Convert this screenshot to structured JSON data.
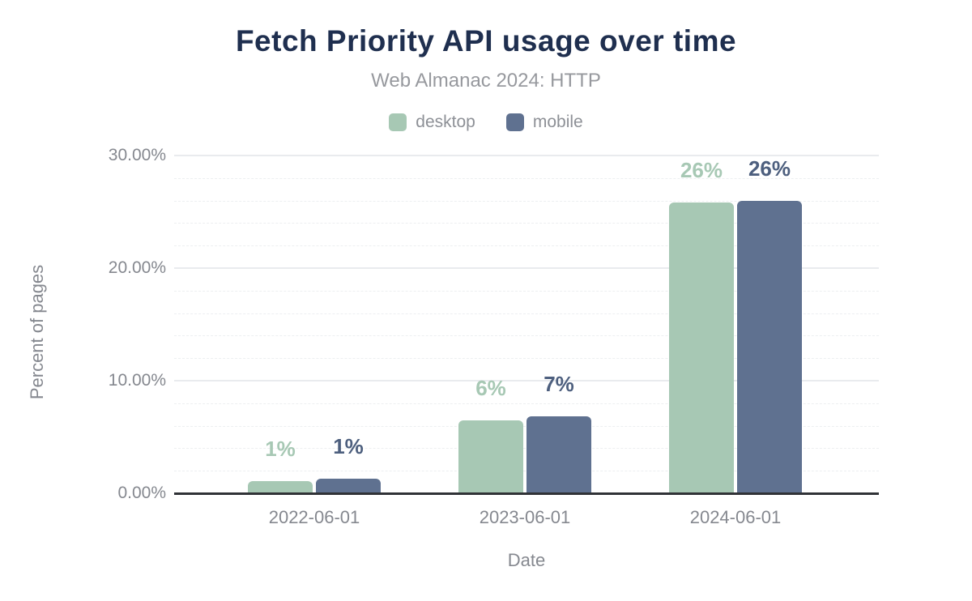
{
  "chart": {
    "title": "Fetch Priority API usage over time",
    "subtitle": "Web Almanac 2024: HTTP",
    "x_axis_title": "Date",
    "y_axis_title": "Percent of pages"
  },
  "chart_data": {
    "type": "bar",
    "title": "Fetch Priority API usage over time",
    "subtitle": "Web Almanac 2024: HTTP",
    "xlabel": "Date",
    "ylabel": "Percent of pages",
    "categories": [
      "2022-06-01",
      "2023-06-01",
      "2024-06-01"
    ],
    "series": [
      {
        "name": "desktop",
        "color": "#a7c8b4",
        "label_color": "#a7c8b4",
        "values": [
          1.1,
          6.5,
          25.8
        ],
        "labels": [
          "1%",
          "6%",
          "26%"
        ]
      },
      {
        "name": "mobile",
        "color": "#5f7190",
        "label_color": "#4d5f7e",
        "values": [
          1.3,
          6.8,
          26.0
        ],
        "labels": [
          "1%",
          "7%",
          "26%"
        ]
      }
    ],
    "y_ticks": [
      "0.00%",
      "10.00%",
      "20.00%",
      "30.00%"
    ],
    "y_tick_values": [
      0,
      10,
      20,
      30
    ],
    "ylim": [
      0,
      30
    ],
    "minor_grid_step": 2,
    "grid": "horizontal-major-solid-minor-dashed",
    "legend_position": "top-center",
    "axis_line_color": "#303236",
    "title_color": "#1f2f4f",
    "text_color": "#85888f"
  }
}
